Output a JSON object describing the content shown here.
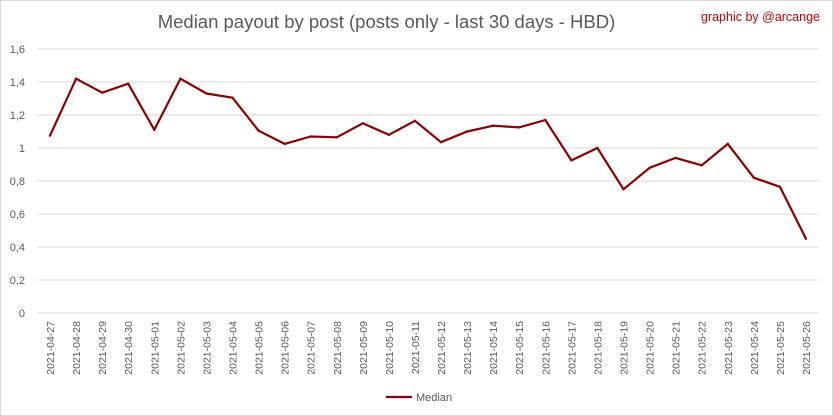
{
  "header": {
    "title": "Median payout by post (posts only - last 30 days - HBD)",
    "credit": "graphic by @arcange"
  },
  "colors": {
    "line": "#8b0000",
    "grid": "#d9d9d9",
    "text": "#595959",
    "credit": "#c00000"
  },
  "chart_data": {
    "type": "line",
    "title": "Median payout by post (posts only - last 30 days - HBD)",
    "xlabel": "",
    "ylabel": "",
    "ylim": [
      0,
      1.6
    ],
    "yticks": [
      "0",
      "0,2",
      "0,4",
      "0,6",
      "0,8",
      "1",
      "1,2",
      "1,4",
      "1,6"
    ],
    "grid": true,
    "legend_position": "bottom",
    "categories": [
      "2021-04-27",
      "2021-04-28",
      "2021-04-29",
      "2021-04-30",
      "2021-05-01",
      "2021-05-02",
      "2021-05-03",
      "2021-05-04",
      "2021-05-05",
      "2021-05-06",
      "2021-05-07",
      "2021-05-08",
      "2021-05-09",
      "2021-05-10",
      "2021-05-11",
      "2021-05-12",
      "2021-05-13",
      "2021-05-14",
      "2021-05-15",
      "2021-05-16",
      "2021-05-17",
      "2021-05-18",
      "2021-05-19",
      "2021-05-20",
      "2021-05-21",
      "2021-05-22",
      "2021-05-23",
      "2021-05-24",
      "2021-05-25",
      "2021-05-26"
    ],
    "series": [
      {
        "name": "Median",
        "values": [
          1.075,
          1.42,
          1.335,
          1.39,
          1.11,
          1.42,
          1.33,
          1.305,
          1.105,
          1.025,
          1.07,
          1.065,
          1.15,
          1.08,
          1.165,
          1.035,
          1.1,
          1.135,
          1.125,
          1.17,
          0.925,
          1.0,
          0.75,
          0.88,
          0.94,
          0.895,
          1.025,
          0.82,
          0.765,
          0.45
        ]
      }
    ]
  }
}
